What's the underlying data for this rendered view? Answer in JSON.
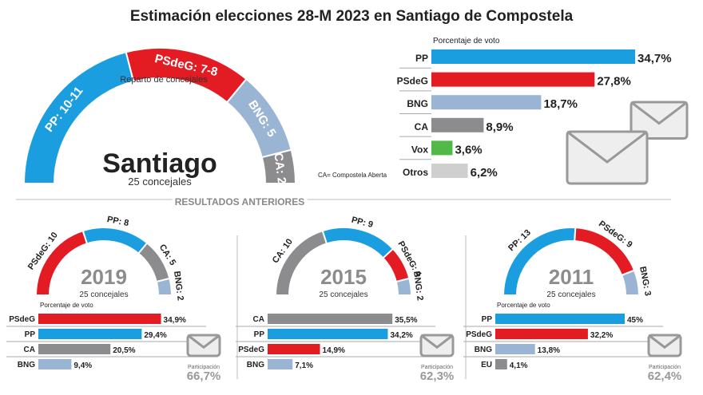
{
  "title": "Estimación elecciones 28-M 2023 en Santiago de Compostela",
  "colors": {
    "PP": "#1a9ee0",
    "PSdeG": "#e31c24",
    "BNG": "#9ab5d3",
    "CA": "#8c8c8e",
    "Vox": "#52b848",
    "Otros": "#cfcfcf",
    "EU": "#8c8c8e"
  },
  "section_label": "RESULTADOS ANTERIORES",
  "chart_data": [
    {
      "type": "pie",
      "subtype": "half-donut",
      "title": "Santiago",
      "subtitle": "25 concejales",
      "inner_label": "Reparto de concejales",
      "note": "CA= Compostela Aberta",
      "slices": [
        {
          "party": "PP",
          "label": "PP: 10-11",
          "value": 10.5
        },
        {
          "party": "PSdeG",
          "label": "PSdeG: 7-8",
          "value": 7.5
        },
        {
          "party": "BNG",
          "label": "BNG: 5",
          "value": 5
        },
        {
          "party": "CA",
          "label": "CA: 2",
          "value": 2
        }
      ]
    },
    {
      "type": "bar",
      "orientation": "horizontal",
      "title": "Porcentaje de voto",
      "categories": [
        "PP",
        "PSdeG",
        "BNG",
        "CA",
        "Vox",
        "Otros"
      ],
      "values": [
        34.7,
        27.8,
        18.7,
        8.9,
        3.6,
        6.2
      ],
      "labels": [
        "34,7%",
        "27,8%",
        "18,7%",
        "8,9%",
        "3,6%",
        "6,2%"
      ]
    },
    {
      "type": "pie",
      "subtype": "half-donut",
      "title": "2019",
      "subtitle": "25 concejales",
      "slices": [
        {
          "party": "PSdeG",
          "label": "PSdeG: 10",
          "value": 10
        },
        {
          "party": "PP",
          "label": "PP: 8",
          "value": 8
        },
        {
          "party": "CA",
          "label": "CA: 5",
          "value": 5
        },
        {
          "party": "BNG",
          "label": "BNG: 2",
          "value": 2
        }
      ],
      "bars": {
        "title": "Porcentaje de voto",
        "categories": [
          "PSdeG",
          "PP",
          "CA",
          "BNG"
        ],
        "values": [
          34.9,
          29.4,
          20.5,
          9.4
        ],
        "labels": [
          "34,9%",
          "29,4%",
          "20,5%",
          "9,4%"
        ]
      },
      "participation_label": "Participación",
      "participation": "66,7%"
    },
    {
      "type": "pie",
      "subtype": "half-donut",
      "title": "2015",
      "subtitle": "25 concejales",
      "slices": [
        {
          "party": "CA",
          "label": "CA: 10",
          "value": 10
        },
        {
          "party": "PP",
          "label": "PP: 9",
          "value": 9
        },
        {
          "party": "PSdeG",
          "label": "PSdeG: 4",
          "value": 4
        },
        {
          "party": "BNG",
          "label": "BNG: 2",
          "value": 2
        }
      ],
      "bars": {
        "title": "",
        "categories": [
          "CA",
          "PP",
          "PSdeG",
          "BNG"
        ],
        "values": [
          35.5,
          34.2,
          14.9,
          7.1
        ],
        "labels": [
          "35,5%",
          "34,2%",
          "14,9%",
          "7,1%"
        ]
      },
      "participation_label": "Participación",
      "participation": "62,3%"
    },
    {
      "type": "pie",
      "subtype": "half-donut",
      "title": "2011",
      "subtitle": "25 concejales",
      "slices": [
        {
          "party": "PP",
          "label": "PP: 13",
          "value": 13
        },
        {
          "party": "PSdeG",
          "label": "PSdeG: 9",
          "value": 9
        },
        {
          "party": "BNG",
          "label": "BNG: 3",
          "value": 3
        }
      ],
      "bars": {
        "title": "Porcentaje de voto",
        "categories": [
          "PP",
          "PSdeG",
          "BNG",
          "EU"
        ],
        "values": [
          45,
          32.2,
          13.8,
          4.1
        ],
        "labels": [
          "45%",
          "32,2%",
          "13,8%",
          "4,1%"
        ]
      },
      "participation_label": "Participación",
      "participation": "62,4%"
    }
  ]
}
